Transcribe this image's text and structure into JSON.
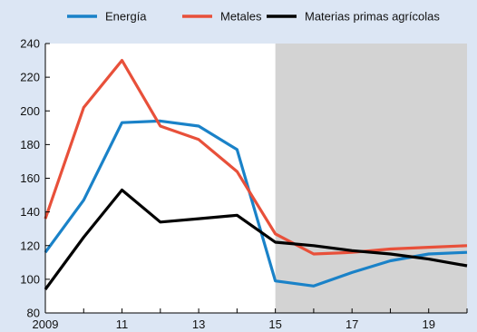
{
  "chart_data": {
    "type": "line",
    "title": "",
    "xlabel": "",
    "ylabel": "",
    "x": [
      2009,
      2010,
      2011,
      2012,
      2013,
      2014,
      2015,
      2016,
      2017,
      2018,
      2019,
      2020
    ],
    "xlim": [
      2009,
      2020
    ],
    "x_ticks": [
      2009,
      2011,
      2013,
      2015,
      2017,
      2019
    ],
    "x_tick_labels": [
      "2009",
      "11",
      "13",
      "15",
      "17",
      "19"
    ],
    "ylim": [
      80,
      240
    ],
    "y_ticks": [
      80,
      100,
      120,
      140,
      160,
      180,
      200,
      220,
      240
    ],
    "y_tick_labels": [
      "80",
      "100",
      "120",
      "140",
      "160",
      "180",
      "200",
      "220",
      "240"
    ],
    "shaded_region": [
      2015,
      2020
    ],
    "shaded_color": "#d3d3d3",
    "grid": false,
    "legend_position": "top",
    "series": [
      {
        "name": "Energía",
        "color": "#1a82c8",
        "values": [
          116,
          147,
          193,
          194,
          191,
          177,
          99,
          96,
          104,
          111,
          115,
          116
        ]
      },
      {
        "name": "Metales",
        "color": "#e8503a",
        "values": [
          136,
          202,
          230,
          191,
          183,
          164,
          127,
          115,
          116,
          118,
          119,
          120
        ]
      },
      {
        "name": "Materias primas agrícolas",
        "color": "#000000",
        "values": [
          94,
          125,
          153,
          134,
          136,
          138,
          122,
          120,
          117,
          115,
          112,
          108
        ]
      }
    ]
  }
}
